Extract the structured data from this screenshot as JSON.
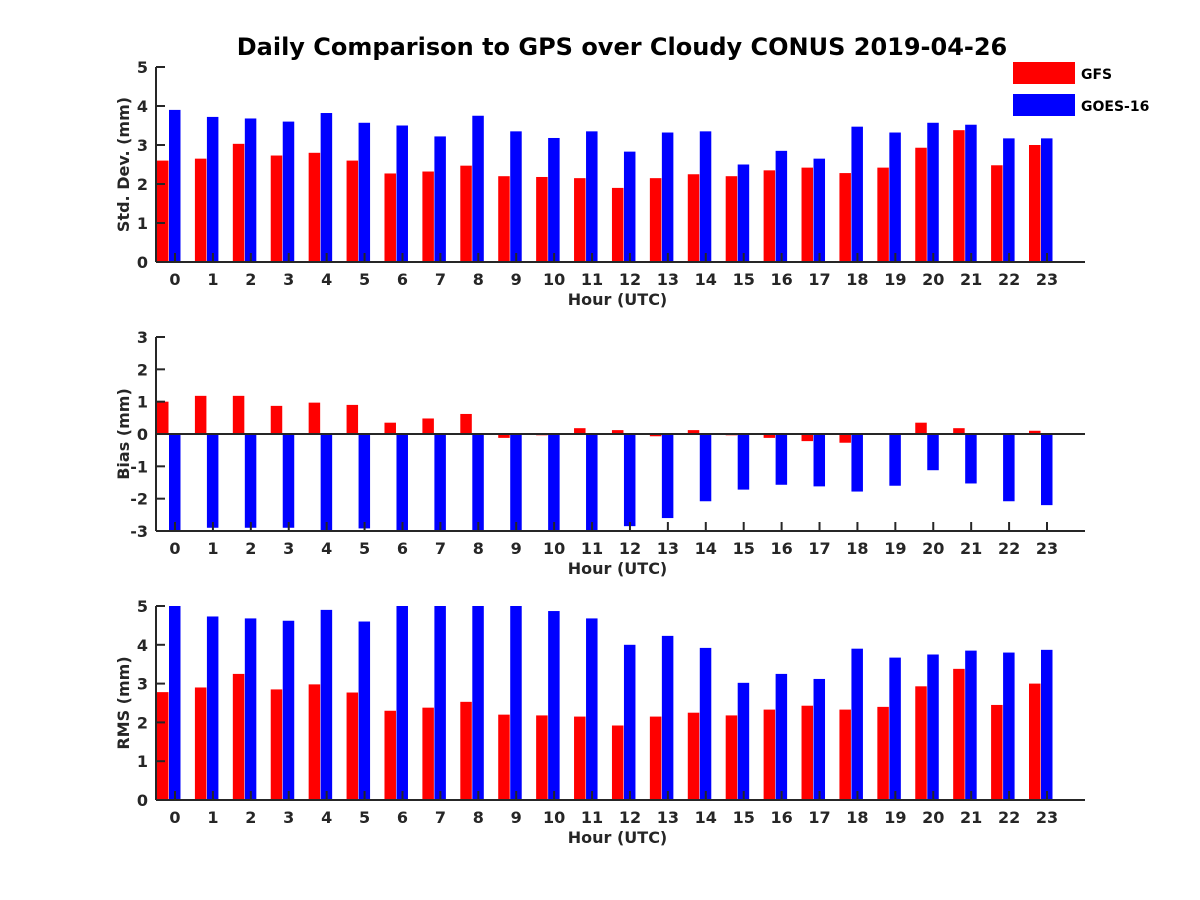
{
  "title": "Daily Comparison to GPS over Cloudy CONUS 2019-04-26",
  "legend": [
    {
      "name": "GFS",
      "color": "#ff0000"
    },
    {
      "name": "GOES-16",
      "color": "#0000ff"
    }
  ],
  "chart_data": [
    {
      "type": "bar",
      "ylabel": "Std. Dev. (mm)",
      "xlabel": "Hour (UTC)",
      "ylim": [
        0,
        5
      ],
      "yticks": [
        0,
        1,
        2,
        3,
        4,
        5
      ],
      "categories": [
        "0",
        "1",
        "2",
        "3",
        "4",
        "5",
        "6",
        "7",
        "8",
        "9",
        "10",
        "11",
        "12",
        "13",
        "14",
        "15",
        "16",
        "17",
        "18",
        "19",
        "20",
        "21",
        "22",
        "23"
      ],
      "series": [
        {
          "name": "GFS",
          "values": [
            2.6,
            2.65,
            3.03,
            2.73,
            2.8,
            2.6,
            2.27,
            2.32,
            2.47,
            2.2,
            2.18,
            2.15,
            1.9,
            2.15,
            2.25,
            2.2,
            2.35,
            2.42,
            2.28,
            2.42,
            2.93,
            3.38,
            2.48,
            3.0
          ]
        },
        {
          "name": "GOES-16",
          "values": [
            3.9,
            3.72,
            3.68,
            3.6,
            3.82,
            3.57,
            3.5,
            3.22,
            3.75,
            3.35,
            3.18,
            3.35,
            2.83,
            3.32,
            3.35,
            2.5,
            2.85,
            2.65,
            3.47,
            3.32,
            3.57,
            3.52,
            3.17,
            3.17
          ]
        }
      ]
    },
    {
      "type": "bar",
      "ylabel": "Bias (mm)",
      "xlabel": "Hour (UTC)",
      "ylim": [
        -3,
        3
      ],
      "yticks": [
        -3,
        -2,
        -1,
        0,
        1,
        2,
        3
      ],
      "categories": [
        "0",
        "1",
        "2",
        "3",
        "4",
        "5",
        "6",
        "7",
        "8",
        "9",
        "10",
        "11",
        "12",
        "13",
        "14",
        "15",
        "16",
        "17",
        "18",
        "19",
        "20",
        "21",
        "22",
        "23"
      ],
      "series": [
        {
          "name": "GFS",
          "values": [
            1.0,
            1.18,
            1.18,
            0.87,
            0.97,
            0.9,
            0.35,
            0.48,
            0.62,
            -0.12,
            -0.04,
            0.18,
            0.12,
            -0.07,
            0.12,
            -0.04,
            -0.12,
            -0.22,
            -0.27,
            -0.03,
            0.35,
            0.18,
            -0.02,
            0.1
          ]
        },
        {
          "name": "GOES-16",
          "values": [
            -3.0,
            -2.9,
            -2.9,
            -2.9,
            -3.0,
            -2.92,
            -3.0,
            -3.0,
            -3.0,
            -3.0,
            -3.0,
            -3.0,
            -2.85,
            -2.6,
            -2.08,
            -1.72,
            -1.57,
            -1.62,
            -1.78,
            -1.6,
            -1.12,
            -1.53,
            -2.08,
            -2.2
          ]
        }
      ]
    },
    {
      "type": "bar",
      "ylabel": "RMS (mm)",
      "xlabel": "Hour (UTC)",
      "ylim": [
        0,
        5
      ],
      "yticks": [
        0,
        1,
        2,
        3,
        4,
        5
      ],
      "categories": [
        "0",
        "1",
        "2",
        "3",
        "4",
        "5",
        "6",
        "7",
        "8",
        "9",
        "10",
        "11",
        "12",
        "13",
        "14",
        "15",
        "16",
        "17",
        "18",
        "19",
        "20",
        "21",
        "22",
        "23"
      ],
      "series": [
        {
          "name": "GFS",
          "values": [
            2.78,
            2.9,
            3.25,
            2.85,
            2.98,
            2.77,
            2.3,
            2.38,
            2.53,
            2.2,
            2.18,
            2.15,
            1.92,
            2.15,
            2.25,
            2.18,
            2.33,
            2.43,
            2.33,
            2.4,
            2.93,
            3.38,
            2.45,
            3.0
          ]
        },
        {
          "name": "GOES-16",
          "values": [
            5.0,
            4.73,
            4.68,
            4.62,
            4.9,
            4.6,
            5.0,
            5.0,
            5.0,
            5.0,
            4.87,
            4.68,
            4.0,
            4.23,
            3.92,
            3.02,
            3.25,
            3.12,
            3.9,
            3.67,
            3.75,
            3.85,
            3.8,
            3.87
          ]
        }
      ]
    }
  ]
}
